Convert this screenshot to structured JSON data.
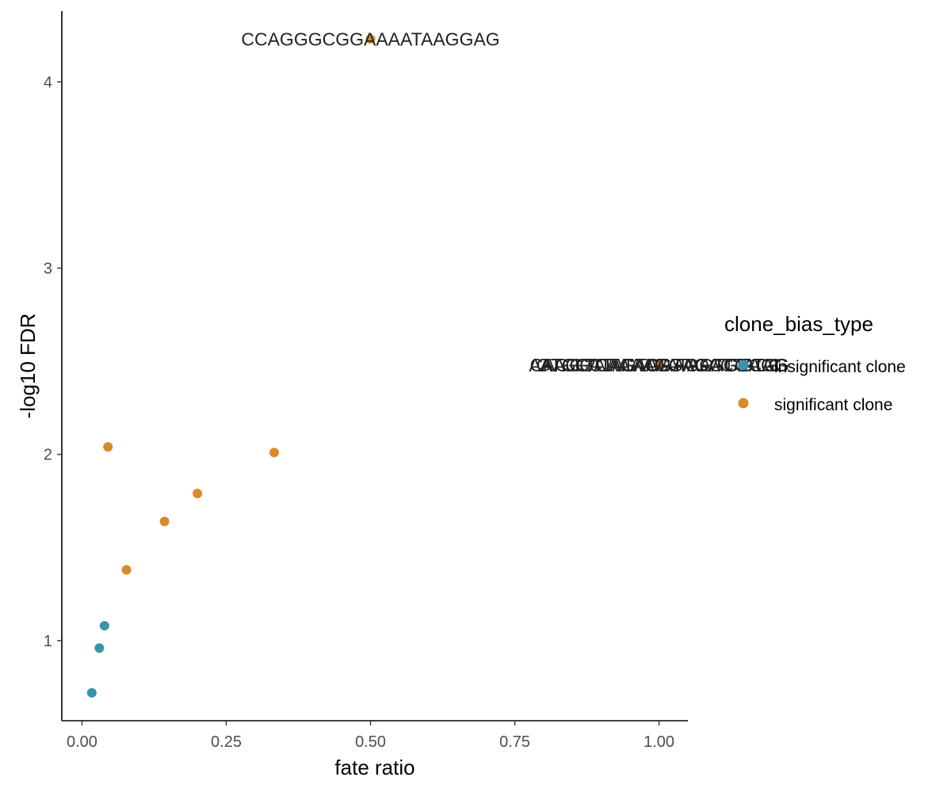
{
  "chart_data": {
    "type": "scatter",
    "xlabel": "fate ratio",
    "ylabel": "-log10 FDR",
    "xlim": [
      -0.035,
      1.05
    ],
    "ylim": [
      0.57,
      4.38
    ],
    "x_ticks": [
      0.0,
      0.25,
      0.5,
      0.75,
      1.0
    ],
    "x_tick_labels": [
      "0.00",
      "0.25",
      "0.50",
      "0.75",
      "1.00"
    ],
    "y_ticks": [
      1,
      2,
      3,
      4
    ],
    "y_tick_labels": [
      "1",
      "2",
      "3",
      "4"
    ],
    "grid": false,
    "legend": {
      "title": "clone_bias_type",
      "position": "right",
      "entries": [
        {
          "label": "insignificant clone",
          "color": "#3a93ad"
        },
        {
          "label": "significant clone",
          "color": "#d98a2b"
        }
      ]
    },
    "series": [
      {
        "name": "insignificant clone",
        "color": "#3a93ad",
        "points": [
          {
            "x": 0.017,
            "y": 0.72
          },
          {
            "x": 0.03,
            "y": 0.96
          },
          {
            "x": 0.039,
            "y": 1.08
          }
        ]
      },
      {
        "name": "significant clone",
        "color": "#d98a2b",
        "points": [
          {
            "x": 0.045,
            "y": 2.04
          },
          {
            "x": 0.077,
            "y": 1.38
          },
          {
            "x": 0.143,
            "y": 1.64
          },
          {
            "x": 0.2,
            "y": 1.79
          },
          {
            "x": 0.333,
            "y": 2.01
          },
          {
            "x": 0.5,
            "y": 4.23
          },
          {
            "x": 1.0,
            "y": 2.48
          }
        ]
      }
    ],
    "annotations": [
      {
        "text": "CCAGGGCGGAAAATAAGGAG",
        "x": 0.5,
        "y": 4.23
      },
      {
        "text": "AAAGGAAAAAGGAGGTGAGG",
        "x": 1.0,
        "y": 2.48
      },
      {
        "text": "ATGCATAGTATATAGTGGTG",
        "x": 1.0,
        "y": 2.48
      },
      {
        "text": "CAGGTCAGAGAAGAAGTCAG",
        "x": 1.0,
        "y": 2.48
      },
      {
        "text": "GTCGCTATACGTAGACTACC",
        "x": 1.0,
        "y": 2.48
      }
    ]
  }
}
